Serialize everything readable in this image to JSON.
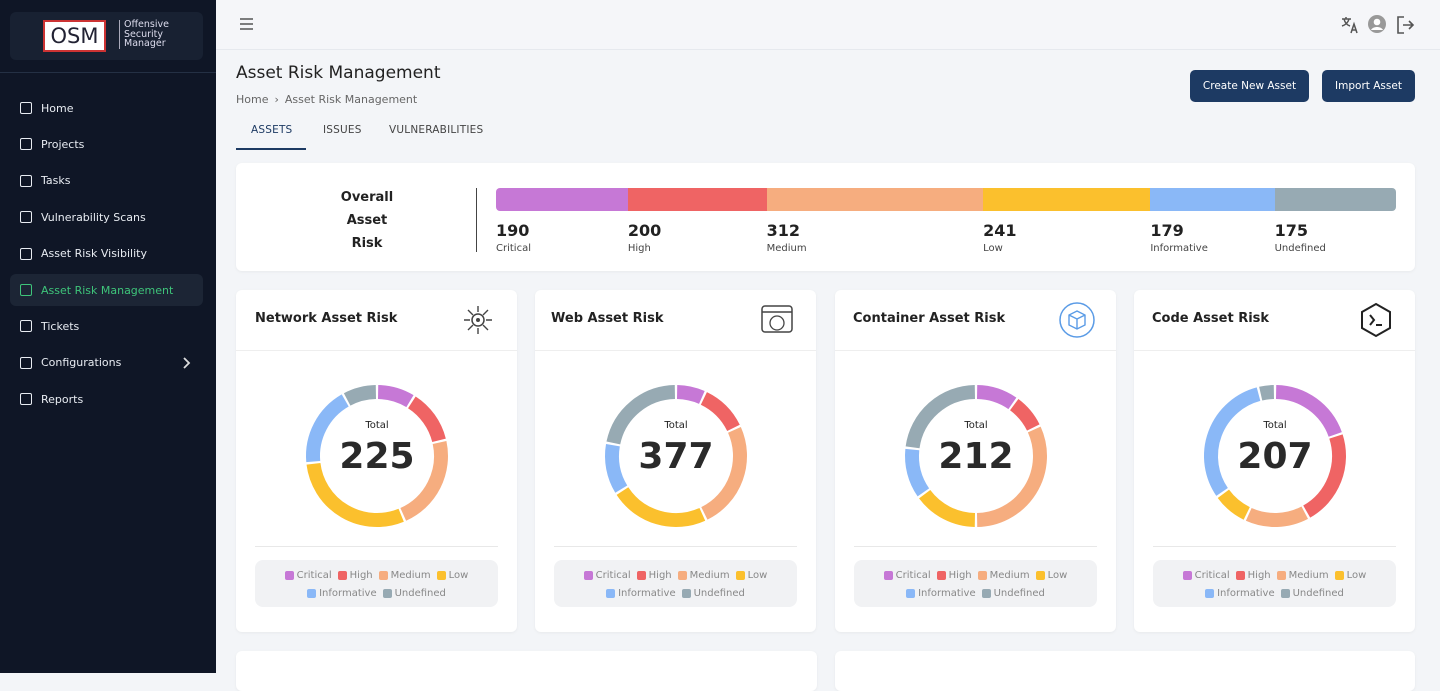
{
  "sidebar": {
    "logo": "OSM",
    "logo_subtitle": "Offensive Security Manager",
    "nav": [
      "Home",
      "Projects",
      "Tasks",
      "Vulnerability Scans",
      "Asset Risk Visibility",
      "Asset Risk Management",
      "Tickets",
      "Configurations",
      "Reports"
    ],
    "active": 5
  },
  "header": {
    "title": "Asset Risk Management",
    "breadcrumb": [
      "Home",
      "Asset Risk Management"
    ],
    "breadcrumb_separator": "›"
  },
  "tabs": [
    "ASSETS",
    "ISSUES",
    "VULNERABILITIES"
  ],
  "active_tab": 0,
  "buttons": [
    "Create New Asset",
    "Import Asset"
  ],
  "risk_levels": [
    {
      "name": "Critical",
      "color": "#c678d6"
    },
    {
      "name": "High",
      "color": "#ef6464"
    },
    {
      "name": "Medium",
      "color": "#f6ad7f"
    },
    {
      "name": "Low",
      "color": "#fbc02d"
    },
    {
      "name": "Informative",
      "color": "#8ab8f7"
    },
    {
      "name": "Undefined",
      "color": "#97aab3"
    }
  ],
  "overall": {
    "label": "Overall Asset Risk",
    "values": [
      190,
      200,
      312,
      241,
      179,
      175
    ]
  },
  "cards": [
    {
      "title": "Network Asset Risk",
      "total_label": "Total",
      "total": 225,
      "values": [
        20,
        28,
        50,
        67,
        42,
        18
      ]
    },
    {
      "title": "Web Asset Risk",
      "total_label": "Total",
      "total": 377,
      "values": [
        26,
        42,
        94,
        87,
        45,
        83
      ]
    },
    {
      "title": "Container Asset Risk",
      "total_label": "Total",
      "total": 212,
      "values": [
        21,
        17,
        68,
        32,
        25,
        49
      ]
    },
    {
      "title": "Code Asset Risk",
      "total_label": "Total",
      "total": 207,
      "values": [
        41,
        46,
        31,
        17,
        64,
        8
      ]
    }
  ]
}
